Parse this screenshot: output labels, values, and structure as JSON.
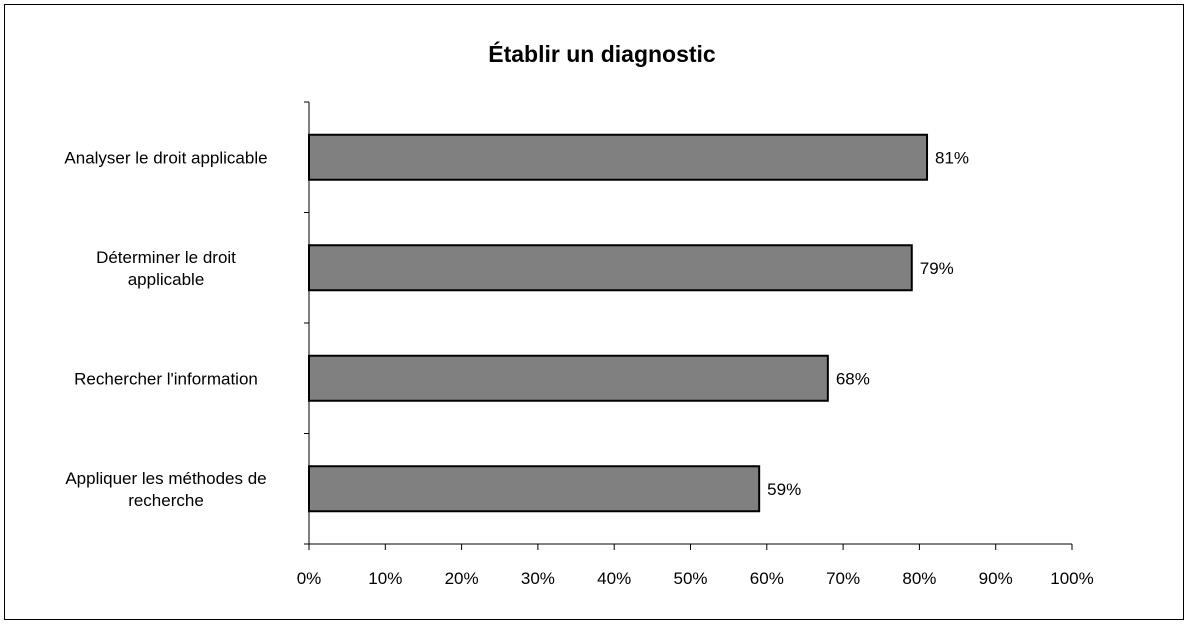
{
  "chart_data": {
    "type": "bar",
    "orientation": "horizontal",
    "title": "Établir un diagnostic",
    "xlabel": "",
    "ylabel": "",
    "categories": [
      [
        "Analyser le droit applicable"
      ],
      [
        "Déterminer le droit",
        "applicable"
      ],
      [
        "Rechercher l'information"
      ],
      [
        "Appliquer les méthodes de",
        "recherche"
      ]
    ],
    "values": [
      81,
      79,
      68,
      59
    ],
    "data_labels": [
      "81%",
      "79%",
      "68%",
      "59%"
    ],
    "xlim": [
      0,
      100
    ],
    "x_ticks": [
      "0%",
      "10%",
      "20%",
      "30%",
      "40%",
      "50%",
      "60%",
      "70%",
      "80%",
      "90%",
      "100%"
    ],
    "grid": false,
    "legend": "none",
    "bar_color": "#808080"
  }
}
